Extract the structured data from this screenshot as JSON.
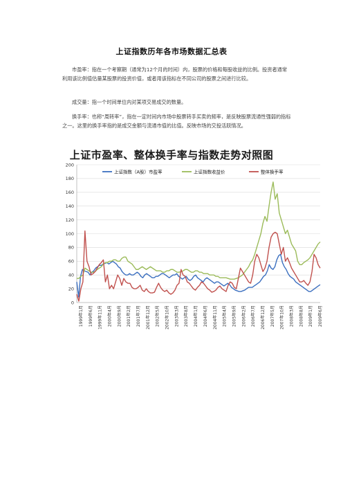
{
  "document": {
    "title": "上证指数历年各市场数据汇总表",
    "paragraphs": [
      "市盈率：指在一个考察期（通常为12个月的时间）内，股票的价格和每股收益的比例。投资者通常利用该比例值估量某股票的投资价值，或者用该指标在不同公司的股票之间进行比较。",
      "成交量：指一个时间单位内对某项交易成交的数量。",
      "换手率：也称“周转率”，指在一定时间内市场中股票转手买卖的频率，是反映股票流通性强弱的指标之一。这里的换手率指的是成交金额与流通市值的比值。反映市场的交投活跃情况。"
    ]
  },
  "chart_data": {
    "type": "line",
    "title": "上证市盈率、整体换手率与指数走势对照图",
    "ylim": [
      0,
      200
    ],
    "yticks": [
      0,
      20,
      40,
      60,
      80,
      100,
      120,
      140,
      160,
      180,
      200
    ],
    "grid": true,
    "legend_position": "top",
    "x_tick_labels": [
      "1999年1月",
      "1999年6月",
      "1999年11月",
      "2000年4月",
      "2000年9月",
      "2001年2月",
      "2001年7月",
      "2001年12月",
      "2002年5月",
      "2002年10月",
      "2003年3月",
      "2003年8月",
      "2004年1月",
      "2004年6月",
      "2004年11月",
      "2005年4月",
      "2005年9月",
      "2006年2月",
      "2006年7月",
      "2006年12月",
      "2007年5月",
      "2007年10月",
      "2008年3月",
      "2008年8月",
      "2009年1月",
      "2009年6月"
    ],
    "series": [
      {
        "name": "上证指数（A股）市盈率",
        "color": "#3b6fbf",
        "values": [
          30,
          8,
          38,
          48,
          46,
          45,
          44,
          40,
          44,
          46,
          50,
          52,
          54,
          54,
          56,
          57,
          58,
          56,
          58,
          60,
          58,
          56,
          52,
          50,
          45,
          42,
          40,
          40,
          42,
          40,
          40,
          42,
          44,
          42,
          38,
          36,
          40,
          42,
          40,
          38,
          36,
          36,
          38,
          38,
          40,
          42,
          42,
          40,
          38,
          36,
          38,
          40,
          40,
          42,
          38,
          36,
          34,
          36,
          38,
          34,
          32,
          34,
          38,
          40,
          36,
          34,
          32,
          30,
          34,
          36,
          34,
          32,
          30,
          28,
          30,
          30,
          28,
          26,
          24,
          26,
          28,
          26,
          22,
          20,
          18,
          17,
          16,
          16,
          17,
          18,
          20,
          22,
          22,
          22,
          24,
          26,
          28,
          30,
          34,
          38,
          40,
          46,
          55,
          50,
          48,
          52,
          62,
          68,
          70,
          58,
          52,
          48,
          42,
          38,
          36,
          34,
          30,
          28,
          26,
          24,
          22,
          20,
          18,
          16,
          16,
          18,
          20,
          22,
          24,
          26
        ]
      },
      {
        "name": "上证指数收益价",
        "color": "#9bbb59",
        "values": [
          35,
          35,
          38,
          40,
          50,
          48,
          46,
          44,
          44,
          45,
          48,
          50,
          52,
          56,
          58,
          58,
          60,
          60,
          62,
          62,
          60,
          60,
          64,
          66,
          66,
          60,
          58,
          56,
          52,
          48,
          48,
          50,
          52,
          50,
          48,
          50,
          52,
          50,
          48,
          46,
          46,
          46,
          44,
          44,
          46,
          46,
          48,
          48,
          46,
          44,
          44,
          45,
          46,
          48,
          48,
          46,
          44,
          44,
          46,
          46,
          44,
          44,
          42,
          42,
          42,
          40,
          40,
          40,
          38,
          38,
          36,
          36,
          36,
          36,
          35,
          34,
          34,
          34,
          35,
          36,
          38,
          40,
          44,
          48,
          52,
          58,
          62,
          70,
          80,
          90,
          100,
          115,
          125,
          118,
          140,
          160,
          175,
          150,
          158,
          130,
          120,
          110,
          100,
          105,
          95,
          85,
          80,
          75,
          60,
          55,
          55,
          58,
          60,
          62,
          65,
          70,
          75,
          80,
          85,
          88
        ]
      },
      {
        "name": "整体换手率",
        "color": "#c0504d",
        "values": [
          12,
          2,
          20,
          30,
          104,
          60,
          52,
          40,
          42,
          45,
          50,
          55,
          58,
          62,
          30,
          40,
          20,
          25,
          20,
          30,
          40,
          35,
          25,
          35,
          30,
          28,
          28,
          22,
          20,
          20,
          22,
          25,
          18,
          16,
          20,
          16,
          14,
          14,
          15,
          22,
          28,
          22,
          18,
          16,
          18,
          14,
          12,
          14,
          18,
          25,
          28,
          48,
          40,
          38,
          30,
          28,
          24,
          20,
          18,
          22,
          25,
          30,
          28,
          24,
          20,
          18,
          15,
          16,
          18,
          22,
          24,
          20,
          18,
          16,
          25,
          30,
          28,
          22,
          20,
          35,
          50,
          45,
          40,
          35,
          30,
          28,
          40,
          60,
          70,
          65,
          55,
          45,
          50,
          60,
          80,
          95,
          100,
          102,
          100,
          85,
          70,
          80,
          60,
          65,
          58,
          50,
          45,
          40,
          35,
          30,
          30,
          32,
          28,
          25,
          30,
          45,
          70,
          65,
          55,
          50
        ]
      }
    ]
  }
}
